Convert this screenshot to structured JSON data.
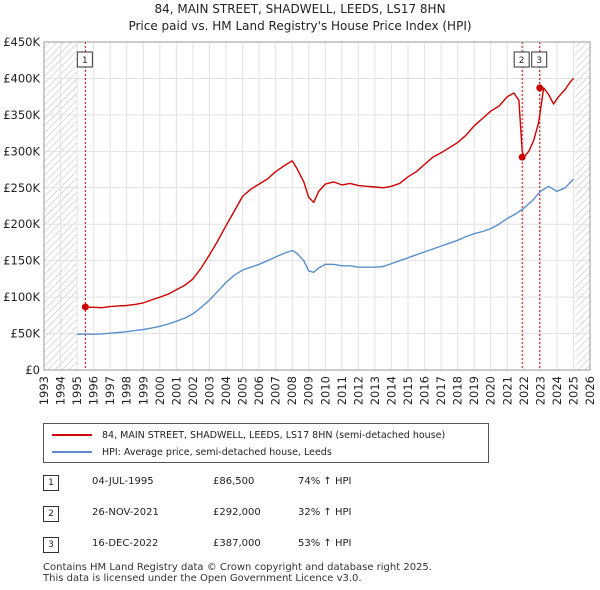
{
  "header": {
    "title_line1": "84, MAIN STREET, SHADWELL, LEEDS, LS17 8HN",
    "title_line2": "Price paid vs. HM Land Registry's House Price Index (HPI)"
  },
  "chart_data": {
    "type": "line",
    "title": "84, MAIN STREET, SHADWELL, LEEDS, LS17 8HN — Price paid vs. HM Land Registry's House Price Index (HPI)",
    "xlim": [
      1993,
      2026
    ],
    "ylim": [
      0,
      450000
    ],
    "x_ticks": [
      1993,
      1994,
      1995,
      1996,
      1997,
      1998,
      1999,
      2000,
      2001,
      2002,
      2003,
      2004,
      2005,
      2006,
      2007,
      2008,
      2009,
      2010,
      2011,
      2012,
      2013,
      2014,
      2015,
      2016,
      2017,
      2018,
      2019,
      2020,
      2021,
      2022,
      2023,
      2024,
      2025,
      2026
    ],
    "y_ticks": [
      {
        "value": 0,
        "label": "£0"
      },
      {
        "value": 50000,
        "label": "£50K"
      },
      {
        "value": 100000,
        "label": "£100K"
      },
      {
        "value": 150000,
        "label": "£150K"
      },
      {
        "value": 200000,
        "label": "£200K"
      },
      {
        "value": 250000,
        "label": "£250K"
      },
      {
        "value": 300000,
        "label": "£300K"
      },
      {
        "value": 350000,
        "label": "£350K"
      },
      {
        "value": 400000,
        "label": "£400K"
      },
      {
        "value": 450000,
        "label": "£450K"
      }
    ],
    "hatched_ranges": [
      [
        1993,
        1995.0
      ],
      [
        2025.1,
        2026
      ]
    ],
    "series": [
      {
        "name": "84, MAIN STREET, SHADWELL, LEEDS, LS17 8HN (semi-detached house)",
        "color": "#cc0000",
        "x": [
          1995.5,
          1996.0,
          1996.5,
          1997.0,
          1997.5,
          1998.0,
          1998.5,
          1999.0,
          1999.5,
          2000.0,
          2000.5,
          2001.0,
          2001.5,
          2002.0,
          2002.5,
          2003.0,
          2003.5,
          2004.0,
          2004.5,
          2005.0,
          2005.5,
          2006.0,
          2006.5,
          2007.0,
          2007.5,
          2008.0,
          2008.3,
          2008.7,
          2009.0,
          2009.3,
          2009.6,
          2010.0,
          2010.5,
          2011.0,
          2011.5,
          2012.0,
          2012.5,
          2013.0,
          2013.5,
          2014.0,
          2014.5,
          2015.0,
          2015.5,
          2016.0,
          2016.5,
          2017.0,
          2017.5,
          2018.0,
          2018.5,
          2019.0,
          2019.5,
          2020.0,
          2020.5,
          2021.0,
          2021.4,
          2021.7,
          2021.9,
          2022.0,
          2022.3,
          2022.6,
          2022.9,
          2023.2,
          2023.5,
          2023.8,
          2024.1,
          2024.5,
          2024.8,
          2025.0
        ],
        "values": [
          86500,
          86000,
          85500,
          87000,
          88000,
          88500,
          90000,
          92000,
          96000,
          100000,
          104000,
          110000,
          116000,
          125000,
          140000,
          158000,
          177000,
          198000,
          218000,
          238000,
          248000,
          255000,
          262000,
          272000,
          280000,
          287000,
          276000,
          258000,
          237000,
          230000,
          245000,
          255000,
          258000,
          254000,
          256000,
          253000,
          252000,
          251000,
          250000,
          252000,
          256000,
          265000,
          272000,
          282000,
          292000,
          298000,
          305000,
          312000,
          322000,
          335000,
          345000,
          355000,
          362000,
          375000,
          380000,
          370000,
          300000,
          292000,
          300000,
          315000,
          340000,
          387000,
          378000,
          365000,
          375000,
          385000,
          395000,
          400000
        ]
      },
      {
        "name": "HPI: Average price, semi-detached house, Leeds",
        "color": "#5b8fcc",
        "x": [
          1995.0,
          1995.5,
          1996.0,
          1996.5,
          1997.0,
          1997.5,
          1998.0,
          1998.5,
          1999.0,
          1999.5,
          2000.0,
          2000.5,
          2001.0,
          2001.5,
          2002.0,
          2002.5,
          2003.0,
          2003.5,
          2004.0,
          2004.5,
          2005.0,
          2005.5,
          2006.0,
          2006.5,
          2007.0,
          2007.5,
          2008.0,
          2008.3,
          2008.7,
          2009.0,
          2009.3,
          2009.6,
          2010.0,
          2010.5,
          2011.0,
          2011.5,
          2012.0,
          2012.5,
          2013.0,
          2013.5,
          2014.0,
          2014.5,
          2015.0,
          2015.5,
          2016.0,
          2016.5,
          2017.0,
          2017.5,
          2018.0,
          2018.5,
          2019.0,
          2019.5,
          2020.0,
          2020.5,
          2021.0,
          2021.5,
          2022.0,
          2022.5,
          2023.0,
          2023.5,
          2024.0,
          2024.5,
          2025.0
        ],
        "values": [
          49000,
          49500,
          49000,
          49500,
          50500,
          51500,
          52500,
          54000,
          55500,
          57500,
          60000,
          63000,
          67000,
          71000,
          77000,
          86000,
          96000,
          108000,
          120000,
          130000,
          137000,
          141000,
          145000,
          150000,
          155000,
          160000,
          164000,
          160000,
          150000,
          136000,
          134000,
          140000,
          145000,
          145000,
          143000,
          143000,
          141000,
          141000,
          141000,
          142000,
          146000,
          150000,
          154000,
          158000,
          162000,
          166000,
          170000,
          174000,
          178000,
          183000,
          187000,
          190000,
          194000,
          200000,
          208000,
          214000,
          222000,
          232000,
          245000,
          252000,
          245000,
          250000,
          262000
        ]
      }
    ],
    "sales": [
      {
        "marker": "1",
        "x": 1995.5,
        "value": 86500
      },
      {
        "marker": "2",
        "x": 2021.9,
        "value": 292000
      },
      {
        "marker": "3",
        "x": 2022.96,
        "value": 387000
      }
    ]
  },
  "legend": {
    "property_label": "84, MAIN STREET, SHADWELL, LEEDS, LS17 8HN (semi-detached house)",
    "hpi_label": "HPI: Average price, semi-detached house, Leeds",
    "property_color": "#cc0000",
    "hpi_color": "#5b8fcc"
  },
  "sales_table": [
    {
      "marker": "1",
      "date": "04-JUL-1995",
      "price": "£86,500",
      "hpi": "74% ↑ HPI"
    },
    {
      "marker": "2",
      "date": "26-NOV-2021",
      "price": "£292,000",
      "hpi": "32% ↑ HPI"
    },
    {
      "marker": "3",
      "date": "16-DEC-2022",
      "price": "£387,000",
      "hpi": "53% ↑ HPI"
    }
  ],
  "footer": {
    "line1": "Contains HM Land Registry data © Crown copyright and database right 2025.",
    "line2": "This data is licensed under the Open Government Licence v3.0."
  }
}
